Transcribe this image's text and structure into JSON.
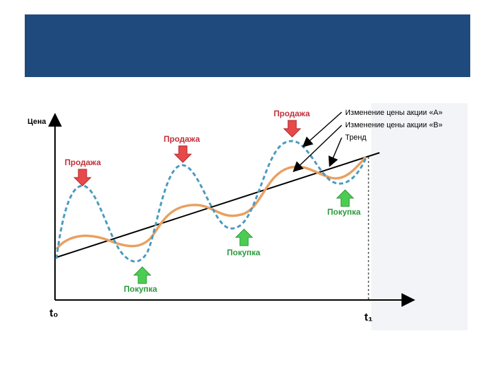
{
  "colors": {
    "header": "#1f4a7d",
    "stock_a": "#4a9ac0",
    "stock_b": "#e8a060",
    "trend": "#000000",
    "sell_arrow": "#e8484a",
    "buy_arrow": "#4ccd52",
    "sell_text": "#c0303a",
    "buy_text": "#2a9a3a"
  },
  "diagram": {
    "y_axis_label": "Цена",
    "t0_label": "t₀",
    "t1_label": "t₁",
    "legend": {
      "stock_a": "Изменение цены акции «A»",
      "stock_b": "Изменение цены акции «B»",
      "trend": "Тренд"
    },
    "signals": [
      {
        "label": "Продажа",
        "type": "sell"
      },
      {
        "label": "Продажа",
        "type": "sell"
      },
      {
        "label": "Продажа",
        "type": "sell"
      },
      {
        "label": "Покупка",
        "type": "buy"
      },
      {
        "label": "Покупка",
        "type": "buy"
      },
      {
        "label": "Покупка",
        "type": "buy"
      }
    ]
  }
}
